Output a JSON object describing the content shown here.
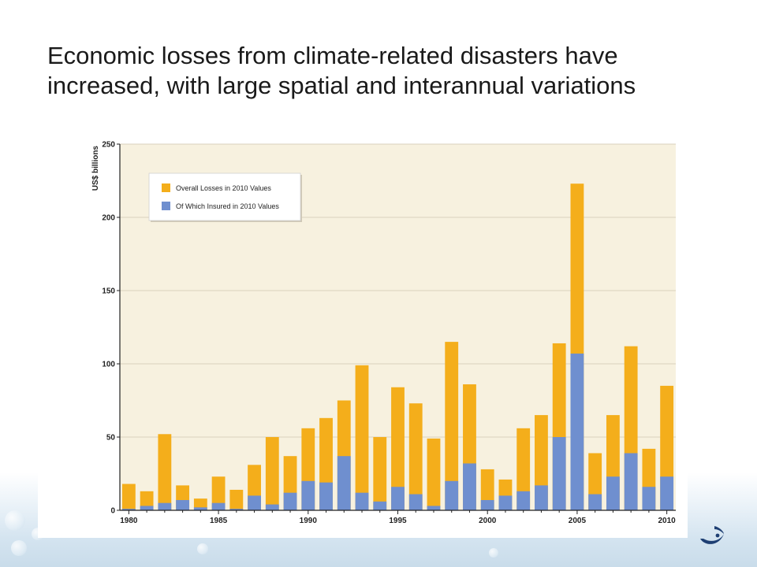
{
  "slide": {
    "title": "Economic losses from climate-related disasters have increased, with large spatial and interannual variations"
  },
  "colors": {
    "overall": "#F4AE1B",
    "insured": "#6F8FCF",
    "plot_bg": "#F7F1DF",
    "grid": "#D8D1BE"
  },
  "logo": {
    "icon": "swoosh-logo-icon"
  },
  "chart_data": {
    "type": "bar",
    "stacked": "overlay",
    "ylabel": "US$ billions",
    "xlabel": "",
    "ylim": [
      0,
      250
    ],
    "yticks": [
      0,
      50,
      100,
      150,
      200,
      250
    ],
    "xticks": [
      "1980",
      "1985",
      "1990",
      "1995",
      "2000",
      "2005",
      "2010"
    ],
    "grid": true,
    "legend_position": "top-left",
    "categories": [
      "1980",
      "1981",
      "1982",
      "1983",
      "1984",
      "1985",
      "1986",
      "1987",
      "1988",
      "1989",
      "1990",
      "1991",
      "1992",
      "1993",
      "1994",
      "1995",
      "1996",
      "1997",
      "1998",
      "1999",
      "2000",
      "2001",
      "2002",
      "2003",
      "2004",
      "2005",
      "2006",
      "2007",
      "2008",
      "2009",
      "2010"
    ],
    "series": [
      {
        "name": "Overall Losses in 2010 Values",
        "values": [
          18,
          13,
          52,
          17,
          8,
          23,
          14,
          31,
          50,
          37,
          56,
          63,
          75,
          99,
          50,
          84,
          73,
          49,
          115,
          86,
          28,
          21,
          56,
          65,
          114,
          223,
          39,
          65,
          112,
          42,
          85
        ]
      },
      {
        "name": "Of Which Insured in 2010 Values",
        "values": [
          1,
          3,
          5,
          7,
          2,
          5,
          1,
          10,
          4,
          12,
          20,
          19,
          37,
          12,
          6,
          16,
          11,
          3,
          20,
          32,
          7,
          10,
          13,
          17,
          50,
          107,
          11,
          23,
          39,
          16,
          23
        ]
      }
    ]
  }
}
